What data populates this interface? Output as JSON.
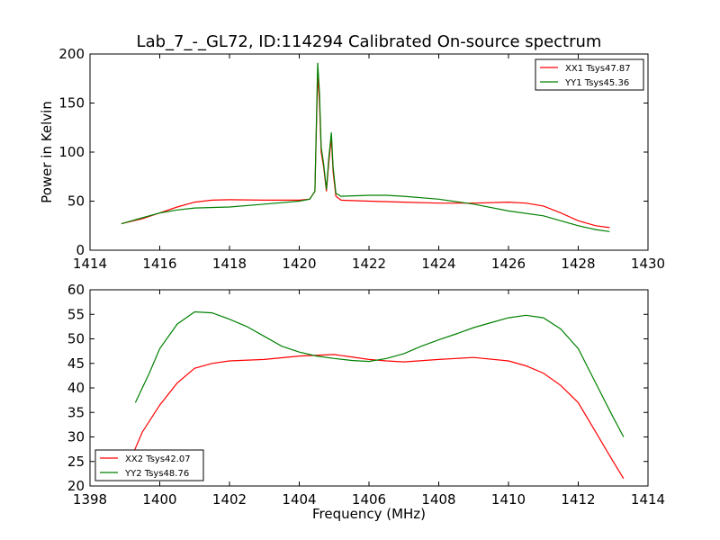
{
  "figure": {
    "title": "Lab_7_-_GL72, ID:114294 Calibrated On-source spectrum"
  },
  "colors": {
    "red": "#ff0000",
    "green": "#008000"
  },
  "chart_data": [
    {
      "type": "line",
      "ylabel": "Power in Kelvin",
      "xlabel": "",
      "xlim": [
        1414,
        1430
      ],
      "ylim": [
        0,
        200
      ],
      "xticks": [
        1414,
        1416,
        1418,
        1420,
        1422,
        1424,
        1426,
        1428,
        1430
      ],
      "yticks": [
        0,
        50,
        100,
        150,
        200
      ],
      "legend": "top-right",
      "series": [
        {
          "name": "XX1 Tsys47.87",
          "color": "#ff0000",
          "points": [
            [
              1414.9,
              27
            ],
            [
              1415.5,
              32
            ],
            [
              1416,
              38
            ],
            [
              1416.5,
              44
            ],
            [
              1417,
              49
            ],
            [
              1417.5,
              51
            ],
            [
              1418,
              51.5
            ],
            [
              1419,
              51
            ],
            [
              1420,
              51
            ],
            [
              1420.3,
              52
            ],
            [
              1420.45,
              60
            ],
            [
              1420.53,
              180
            ],
            [
              1420.58,
              150
            ],
            [
              1420.63,
              100
            ],
            [
              1420.7,
              85
            ],
            [
              1420.78,
              60
            ],
            [
              1420.85,
              90
            ],
            [
              1420.92,
              115
            ],
            [
              1420.97,
              80
            ],
            [
              1421.05,
              55
            ],
            [
              1421.2,
              51
            ],
            [
              1422,
              50
            ],
            [
              1423,
              49
            ],
            [
              1424,
              48
            ],
            [
              1425,
              48
            ],
            [
              1426,
              49
            ],
            [
              1426.5,
              48
            ],
            [
              1427,
              45
            ],
            [
              1427.5,
              38
            ],
            [
              1428,
              30
            ],
            [
              1428.5,
              25
            ],
            [
              1428.9,
              23
            ]
          ]
        },
        {
          "name": "YY1 Tsys45.36",
          "color": "#008000",
          "points": [
            [
              1414.9,
              27
            ],
            [
              1415.5,
              33
            ],
            [
              1416,
              38
            ],
            [
              1416.5,
              41
            ],
            [
              1417,
              43
            ],
            [
              1418,
              44
            ],
            [
              1419,
              47
            ],
            [
              1420,
              50
            ],
            [
              1420.3,
              52
            ],
            [
              1420.45,
              60
            ],
            [
              1420.53,
              191
            ],
            [
              1420.58,
              160
            ],
            [
              1420.63,
              105
            ],
            [
              1420.7,
              88
            ],
            [
              1420.78,
              62
            ],
            [
              1420.85,
              95
            ],
            [
              1420.92,
              120
            ],
            [
              1420.97,
              85
            ],
            [
              1421.05,
              58
            ],
            [
              1421.2,
              55
            ],
            [
              1422,
              56
            ],
            [
              1422.5,
              56
            ],
            [
              1423,
              55
            ],
            [
              1424,
              52
            ],
            [
              1425,
              47
            ],
            [
              1426,
              40
            ],
            [
              1427,
              35
            ],
            [
              1427.5,
              30
            ],
            [
              1428,
              25
            ],
            [
              1428.5,
              21
            ],
            [
              1428.9,
              19
            ]
          ]
        }
      ]
    },
    {
      "type": "line",
      "ylabel": "",
      "xlabel": "Frequency (MHz)",
      "xlim": [
        1398,
        1414
      ],
      "ylim": [
        20,
        60
      ],
      "xticks": [
        1398,
        1400,
        1402,
        1404,
        1406,
        1408,
        1410,
        1412,
        1414
      ],
      "yticks": [
        20,
        25,
        30,
        35,
        40,
        45,
        50,
        55,
        60
      ],
      "legend": "bottom-left",
      "series": [
        {
          "name": "XX2 Tsys42.07",
          "color": "#ff0000",
          "points": [
            [
              1399.2,
              26
            ],
            [
              1399.5,
              31
            ],
            [
              1400,
              36.5
            ],
            [
              1400.5,
              41
            ],
            [
              1401,
              44
            ],
            [
              1401.5,
              45
            ],
            [
              1402,
              45.5
            ],
            [
              1403,
              45.8
            ],
            [
              1404,
              46.5
            ],
            [
              1405,
              46.8
            ],
            [
              1406,
              45.8
            ],
            [
              1406.5,
              45.5
            ],
            [
              1407,
              45.3
            ],
            [
              1408,
              45.8
            ],
            [
              1409,
              46.2
            ],
            [
              1410,
              45.5
            ],
            [
              1410.5,
              44.5
            ],
            [
              1411,
              43
            ],
            [
              1411.5,
              40.5
            ],
            [
              1412,
              37
            ],
            [
              1412.5,
              31
            ],
            [
              1413,
              25
            ],
            [
              1413.3,
              21.5
            ]
          ]
        },
        {
          "name": "YY2 Tsys48.76",
          "color": "#008000",
          "points": [
            [
              1399.3,
              37
            ],
            [
              1399.7,
              43
            ],
            [
              1400,
              48
            ],
            [
              1400.5,
              53
            ],
            [
              1401,
              55.5
            ],
            [
              1401.5,
              55.3
            ],
            [
              1402,
              54
            ],
            [
              1402.5,
              52.5
            ],
            [
              1403,
              50.5
            ],
            [
              1403.5,
              48.5
            ],
            [
              1404,
              47.3
            ],
            [
              1404.5,
              46.5
            ],
            [
              1405,
              46
            ],
            [
              1405.5,
              45.6
            ],
            [
              1406,
              45.4
            ],
            [
              1406.5,
              46
            ],
            [
              1407,
              47
            ],
            [
              1407.5,
              48.5
            ],
            [
              1408,
              49.8
            ],
            [
              1408.5,
              51
            ],
            [
              1409,
              52.3
            ],
            [
              1409.5,
              53.3
            ],
            [
              1410,
              54.3
            ],
            [
              1410.5,
              54.8
            ],
            [
              1411,
              54.3
            ],
            [
              1411.5,
              52
            ],
            [
              1412,
              48
            ],
            [
              1412.5,
              41
            ],
            [
              1413,
              34
            ],
            [
              1413.3,
              30
            ]
          ]
        }
      ]
    }
  ]
}
